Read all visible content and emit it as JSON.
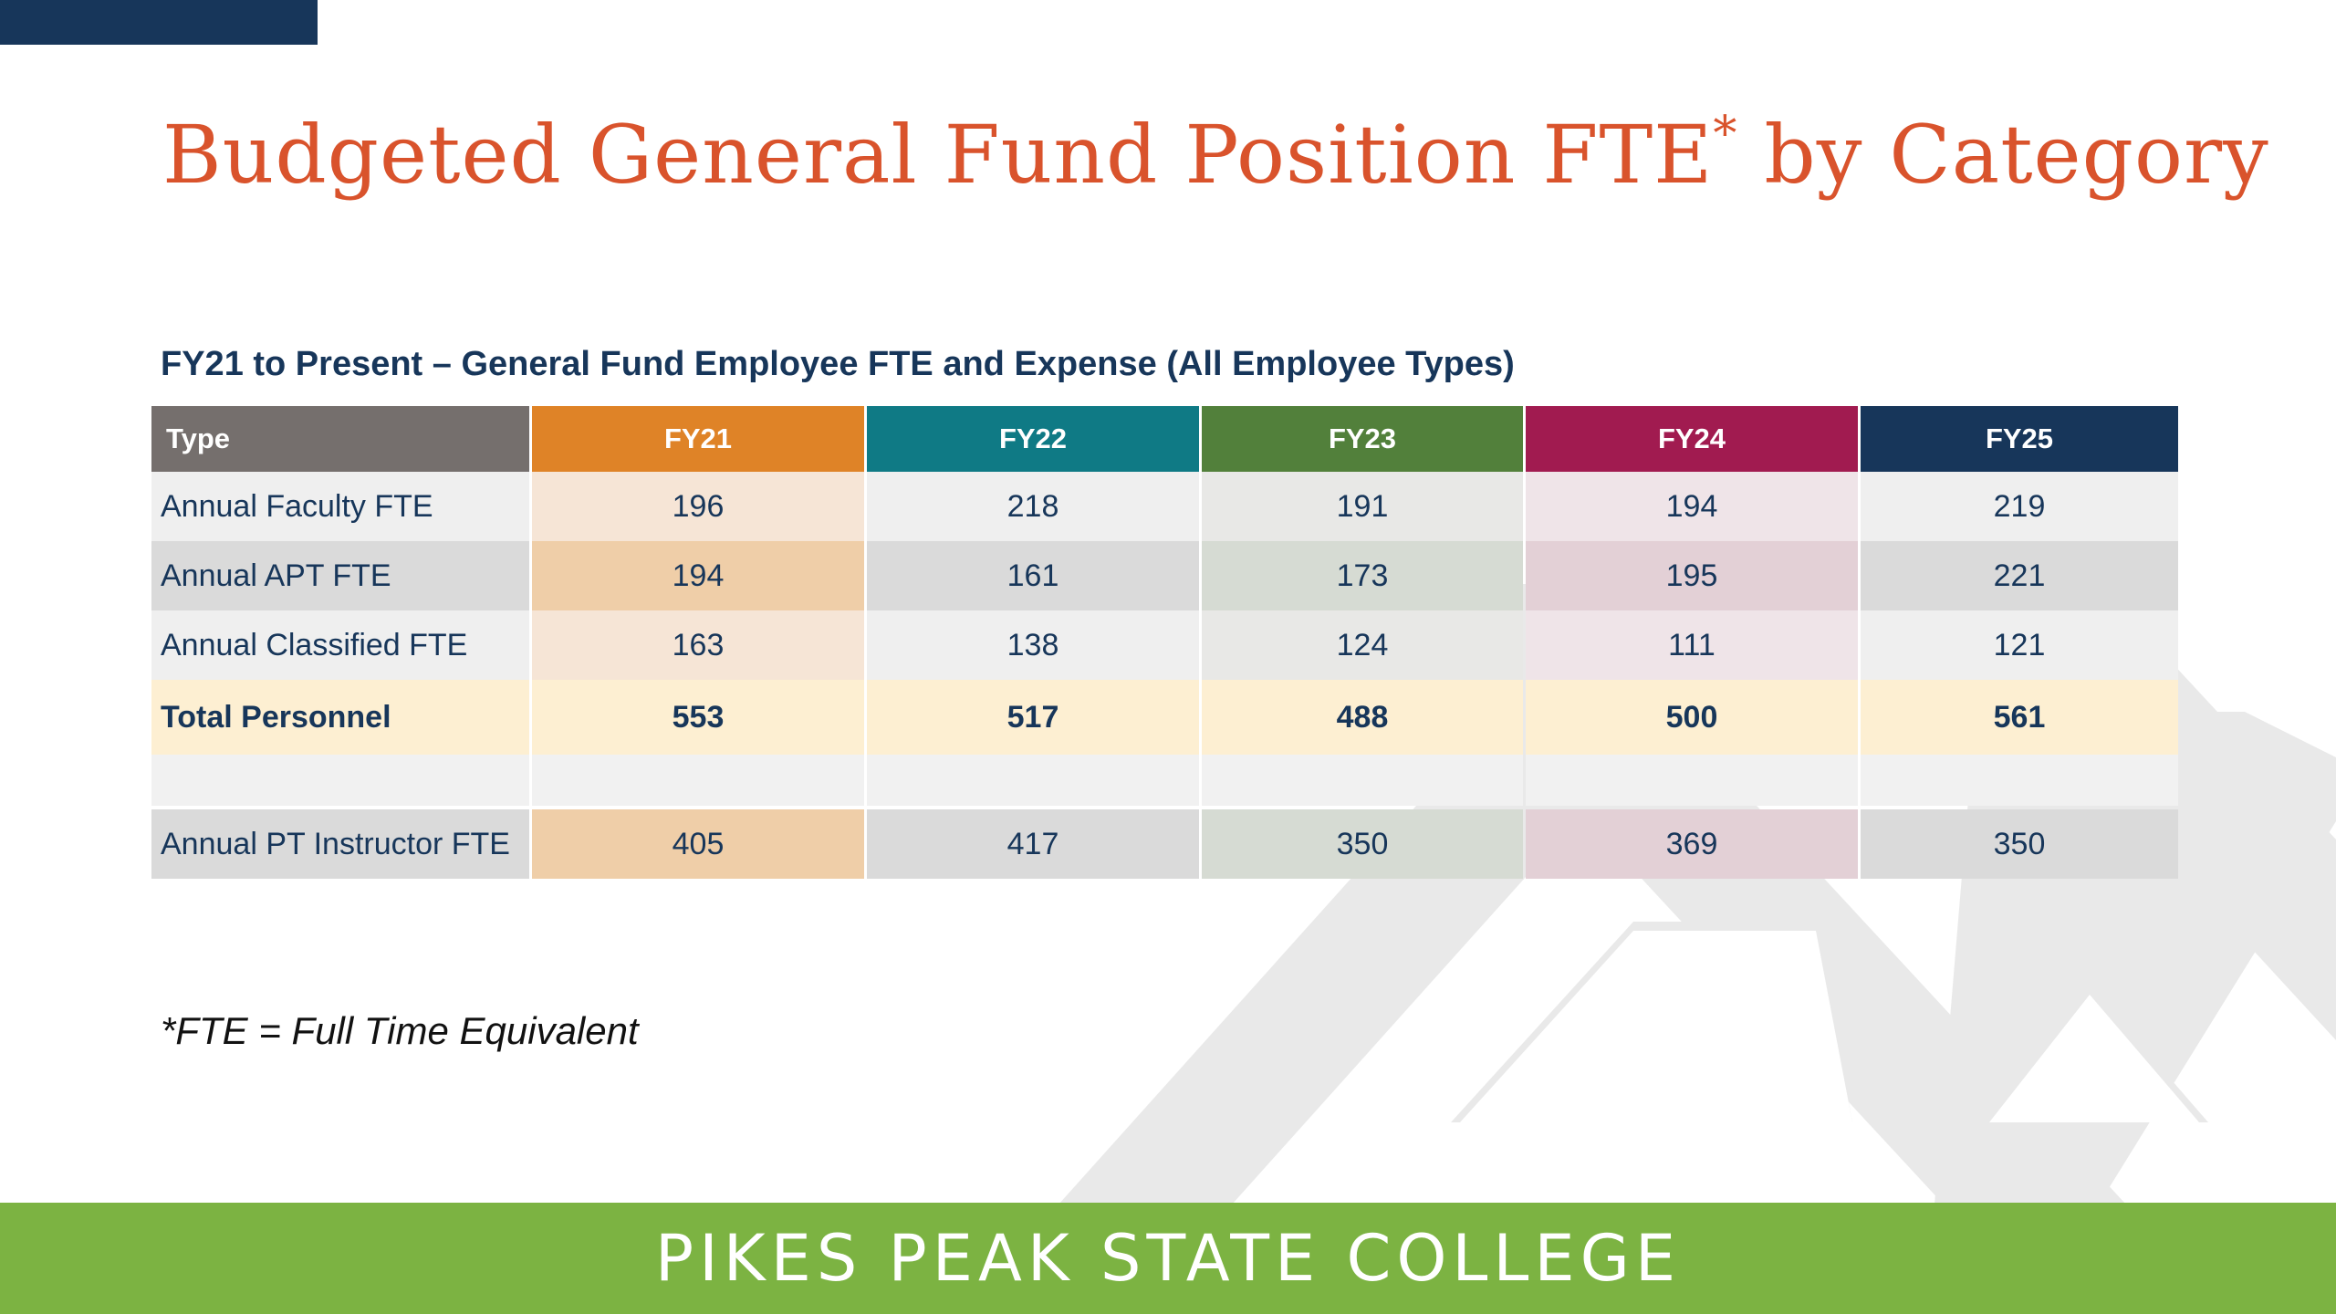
{
  "title": {
    "main": "Budgeted General Fund Position FTE",
    "asterisk": "*",
    "suffix": "by Category"
  },
  "subtitle": "FY21 to Present – General Fund Employee FTE and Expense (All Employee Types)",
  "table": {
    "headers": [
      "Type",
      "FY21",
      "FY22",
      "FY23",
      "FY24",
      "FY25"
    ],
    "header_colors": [
      "#756f6d",
      "#df8327",
      "#0f7a85",
      "#52803b",
      "#a11b50",
      "#17365a"
    ],
    "rows": [
      {
        "type": "Annual Faculty FTE",
        "values": [
          "196",
          "218",
          "191",
          "194",
          "219"
        ]
      },
      {
        "type": "Annual APT FTE",
        "values": [
          "194",
          "161",
          "173",
          "195",
          "221"
        ]
      },
      {
        "type": "Annual Classified FTE",
        "values": [
          "163",
          "138",
          "124",
          "111",
          "121"
        ]
      }
    ],
    "total": {
      "type": "Total Personnel",
      "values": [
        "553",
        "517",
        "488",
        "500",
        "561"
      ]
    },
    "pt_row": {
      "type": "Annual PT Instructor FTE",
      "values": [
        "405",
        "417",
        "350",
        "369",
        "350"
      ]
    }
  },
  "footnote": "*FTE = Full Time Equivalent",
  "footer": {
    "name": "PIKES PEAK STATE COLLEGE",
    "color": "#7cb342"
  },
  "colors": {
    "title": "#d9532c",
    "navy": "#17365a"
  }
}
